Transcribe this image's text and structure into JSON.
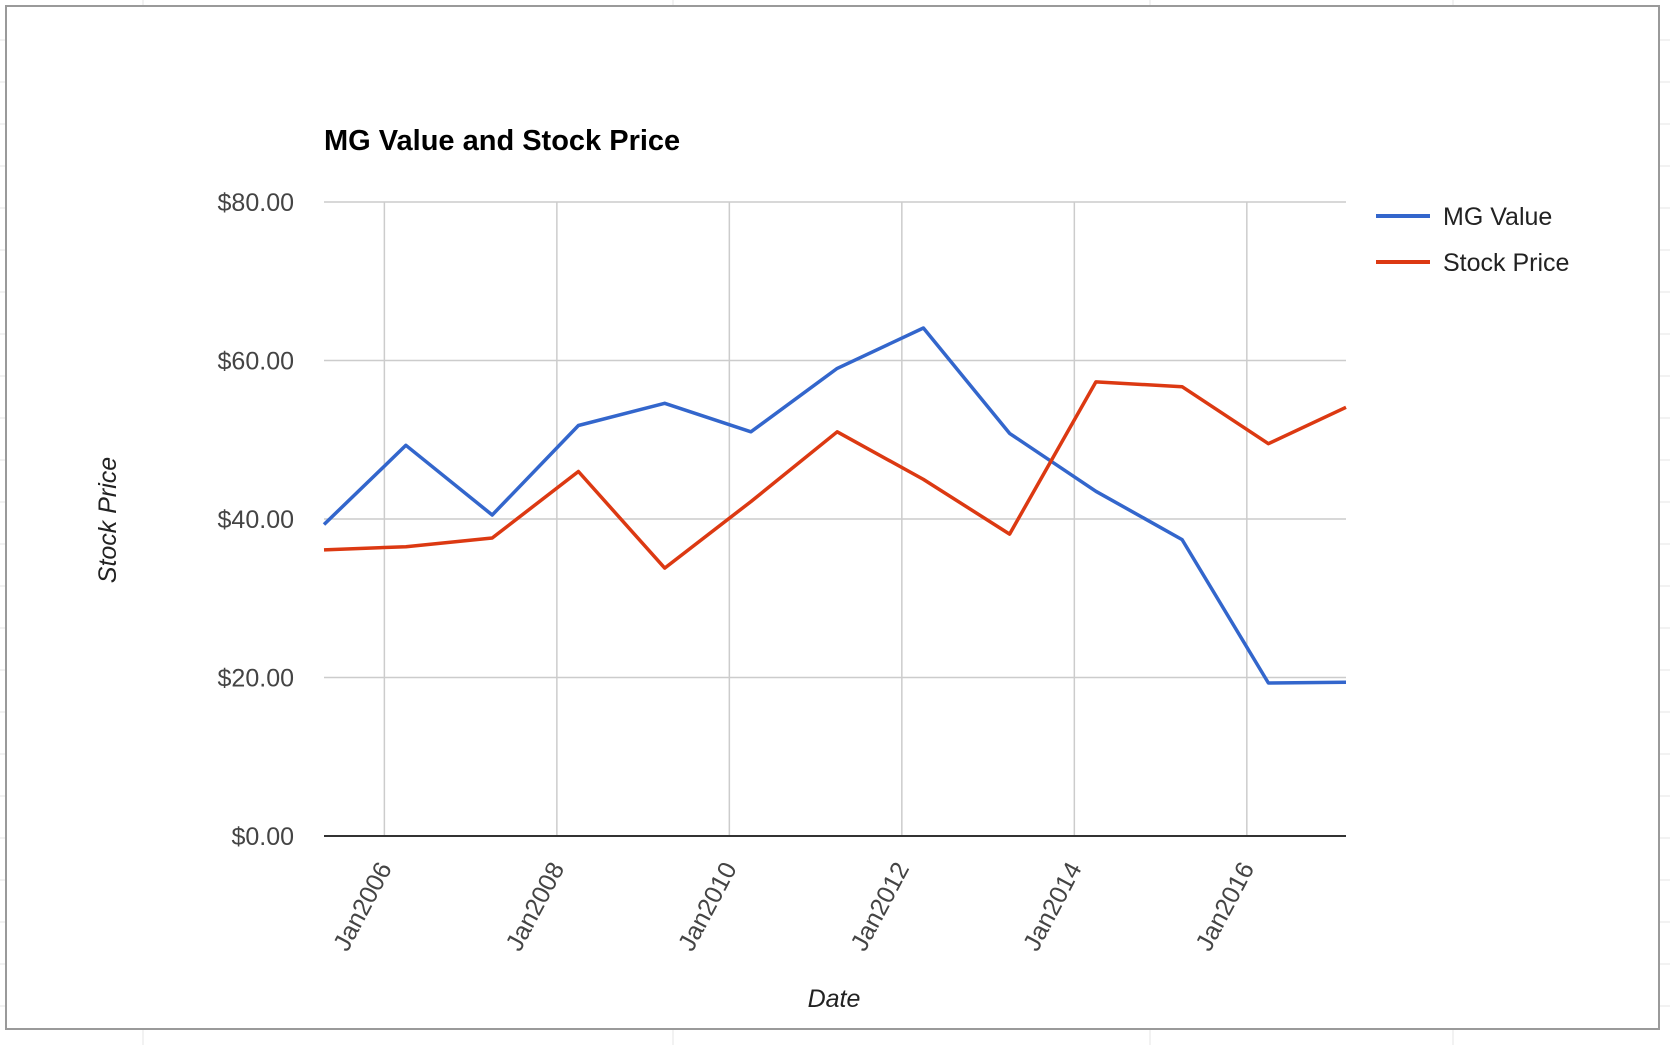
{
  "chart_data": {
    "type": "line",
    "title": "MG Value and Stock Price",
    "xlabel": "Date",
    "ylabel": "Stock Price",
    "ylim": [
      0,
      80
    ],
    "y_ticks": [
      0,
      20,
      40,
      60,
      80
    ],
    "y_tick_labels": [
      "$0.00",
      "$20.00",
      "$40.00",
      "$60.00",
      "$80.00"
    ],
    "x_range": [
      2005.3,
      2017.15
    ],
    "x_ticks": [
      2006,
      2008,
      2010,
      2012,
      2014,
      2016
    ],
    "x_tick_labels": [
      "Jan2006",
      "Jan2008",
      "Jan2010",
      "Jan2012",
      "Jan2014",
      "Jan2016"
    ],
    "x": [
      2005.3,
      2006.25,
      2007.25,
      2008.25,
      2009.25,
      2010.25,
      2011.25,
      2012.25,
      2013.25,
      2014.25,
      2015.25,
      2016.25,
      2017.15
    ],
    "series": [
      {
        "name": "MG Value",
        "color": "#3366cc",
        "values": [
          39.3,
          49.3,
          40.5,
          51.8,
          54.6,
          51.0,
          59.0,
          64.1,
          50.8,
          43.5,
          37.4,
          19.3,
          19.4
        ]
      },
      {
        "name": "Stock Price",
        "color": "#dc3912",
        "values": [
          36.1,
          36.5,
          37.6,
          46.0,
          33.8,
          42.2,
          51.0,
          45.0,
          38.1,
          57.3,
          56.7,
          49.5,
          54.1
        ]
      }
    ],
    "grid": true,
    "legend": "right"
  }
}
